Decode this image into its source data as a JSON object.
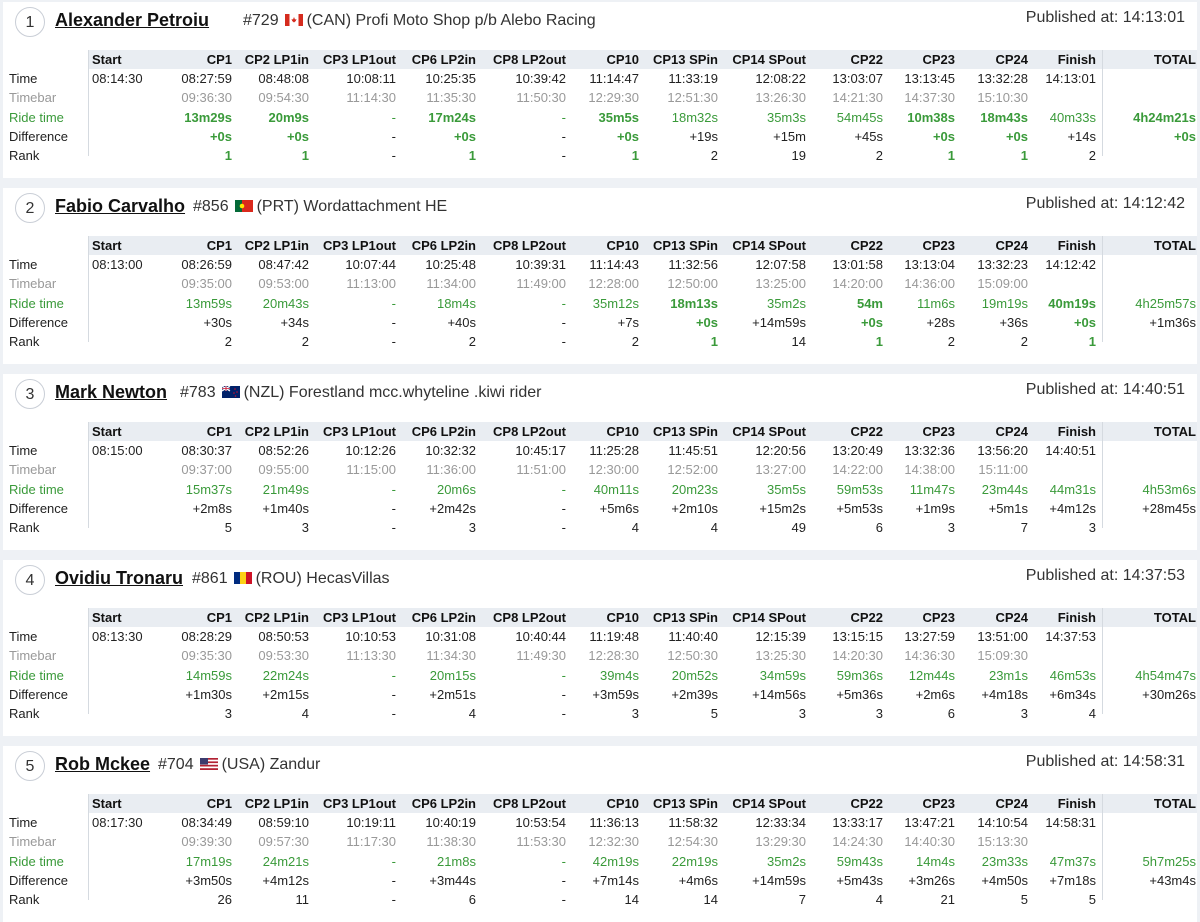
{
  "columns": [
    "Start",
    "CP1",
    "CP2 LP1in",
    "CP3 LP1out",
    "CP6 LP2in",
    "CP8 LP2out",
    "CP10",
    "CP13 SPin",
    "CP14 SPout",
    "CP22",
    "CP23",
    "CP24",
    "Finish",
    "TOTAL"
  ],
  "row_labels": [
    "Time",
    "Timebar",
    "Ride time",
    "Difference",
    "Rank"
  ],
  "riders": [
    {
      "position": "1",
      "name": "Alexander Petroiu",
      "number": "#729",
      "country": "(CAN)",
      "flag": "flag-canada",
      "team": "Profi Moto Shop p/b Alebo Racing",
      "published": "Published at: 14:13:01",
      "rows": {
        "time": [
          "08:14:30",
          "08:27:59",
          "08:48:08",
          "10:08:11",
          "10:25:35",
          "10:39:42",
          "11:14:47",
          "11:33:19",
          "12:08:22",
          "13:03:07",
          "13:13:45",
          "13:32:28",
          "14:13:01",
          ""
        ],
        "timebar": [
          "",
          "09:36:30",
          "09:54:30",
          "11:14:30",
          "11:35:30",
          "11:50:30",
          "12:29:30",
          "12:51:30",
          "13:26:30",
          "14:21:30",
          "14:37:30",
          "15:10:30",
          "",
          ""
        ],
        "ride": [
          "",
          "13m29s",
          "20m9s",
          "-",
          "17m24s",
          "-",
          "35m5s",
          "18m32s",
          "35m3s",
          "54m45s",
          "10m38s",
          "18m43s",
          "40m33s",
          "4h24m21s"
        ],
        "ride_best": [
          false,
          true,
          true,
          false,
          true,
          false,
          true,
          false,
          false,
          false,
          true,
          true,
          false,
          true
        ],
        "diff": [
          "",
          "+0s",
          "+0s",
          "-",
          "+0s",
          "-",
          "+0s",
          "+19s",
          "+15m",
          "+45s",
          "+0s",
          "+0s",
          "+14s",
          "+0s"
        ],
        "rank": [
          "",
          "1",
          "1",
          "-",
          "1",
          "-",
          "1",
          "2",
          "19",
          "2",
          "1",
          "1",
          "2",
          ""
        ]
      }
    },
    {
      "position": "2",
      "name": "Fabio Carvalho",
      "number": "#856",
      "country": "(PRT)",
      "flag": "flag-portugal",
      "team": "Wordattachment HE",
      "published": "Published at: 14:12:42",
      "rows": {
        "time": [
          "08:13:00",
          "08:26:59",
          "08:47:42",
          "10:07:44",
          "10:25:48",
          "10:39:31",
          "11:14:43",
          "11:32:56",
          "12:07:58",
          "13:01:58",
          "13:13:04",
          "13:32:23",
          "14:12:42",
          ""
        ],
        "timebar": [
          "",
          "09:35:00",
          "09:53:00",
          "11:13:00",
          "11:34:00",
          "11:49:00",
          "12:28:00",
          "12:50:00",
          "13:25:00",
          "14:20:00",
          "14:36:00",
          "15:09:00",
          "",
          ""
        ],
        "ride": [
          "",
          "13m59s",
          "20m43s",
          "-",
          "18m4s",
          "-",
          "35m12s",
          "18m13s",
          "35m2s",
          "54m",
          "11m6s",
          "19m19s",
          "40m19s",
          "4h25m57s"
        ],
        "ride_best": [
          false,
          false,
          false,
          false,
          false,
          false,
          false,
          true,
          false,
          true,
          false,
          false,
          true,
          false
        ],
        "diff": [
          "",
          "+30s",
          "+34s",
          "-",
          "+40s",
          "-",
          "+7s",
          "+0s",
          "+14m59s",
          "+0s",
          "+28s",
          "+36s",
          "+0s",
          "+1m36s"
        ],
        "rank": [
          "",
          "2",
          "2",
          "-",
          "2",
          "-",
          "2",
          "1",
          "14",
          "1",
          "2",
          "2",
          "1",
          ""
        ]
      }
    },
    {
      "position": "3",
      "name": "Mark Newton",
      "number": "#783",
      "country": "(NZL)",
      "flag": "flag-new-zealand",
      "team": "Forestland mcc.whyteline .kiwi rider",
      "published": "Published at: 14:40:51",
      "rows": {
        "time": [
          "08:15:00",
          "08:30:37",
          "08:52:26",
          "10:12:26",
          "10:32:32",
          "10:45:17",
          "11:25:28",
          "11:45:51",
          "12:20:56",
          "13:20:49",
          "13:32:36",
          "13:56:20",
          "14:40:51",
          ""
        ],
        "timebar": [
          "",
          "09:37:00",
          "09:55:00",
          "11:15:00",
          "11:36:00",
          "11:51:00",
          "12:30:00",
          "12:52:00",
          "13:27:00",
          "14:22:00",
          "14:38:00",
          "15:11:00",
          "",
          ""
        ],
        "ride": [
          "",
          "15m37s",
          "21m49s",
          "-",
          "20m6s",
          "-",
          "40m11s",
          "20m23s",
          "35m5s",
          "59m53s",
          "11m47s",
          "23m44s",
          "44m31s",
          "4h53m6s"
        ],
        "ride_best": [
          false,
          false,
          false,
          false,
          false,
          false,
          false,
          false,
          false,
          false,
          false,
          false,
          false,
          false
        ],
        "diff": [
          "",
          "+2m8s",
          "+1m40s",
          "-",
          "+2m42s",
          "-",
          "+5m6s",
          "+2m10s",
          "+15m2s",
          "+5m53s",
          "+1m9s",
          "+5m1s",
          "+4m12s",
          "+28m45s"
        ],
        "rank": [
          "",
          "5",
          "3",
          "-",
          "3",
          "-",
          "4",
          "4",
          "49",
          "6",
          "3",
          "7",
          "3",
          ""
        ]
      }
    },
    {
      "position": "4",
      "name": "Ovidiu Tronaru",
      "number": "#861",
      "country": "(ROU)",
      "flag": "flag-romania",
      "team": "HecasVillas",
      "published": "Published at: 14:37:53",
      "rows": {
        "time": [
          "08:13:30",
          "08:28:29",
          "08:50:53",
          "10:10:53",
          "10:31:08",
          "10:40:44",
          "11:19:48",
          "11:40:40",
          "12:15:39",
          "13:15:15",
          "13:27:59",
          "13:51:00",
          "14:37:53",
          ""
        ],
        "timebar": [
          "",
          "09:35:30",
          "09:53:30",
          "11:13:30",
          "11:34:30",
          "11:49:30",
          "12:28:30",
          "12:50:30",
          "13:25:30",
          "14:20:30",
          "14:36:30",
          "15:09:30",
          "",
          ""
        ],
        "ride": [
          "",
          "14m59s",
          "22m24s",
          "-",
          "20m15s",
          "-",
          "39m4s",
          "20m52s",
          "34m59s",
          "59m36s",
          "12m44s",
          "23m1s",
          "46m53s",
          "4h54m47s"
        ],
        "ride_best": [
          false,
          false,
          false,
          false,
          false,
          false,
          false,
          false,
          false,
          false,
          false,
          false,
          false,
          false
        ],
        "diff": [
          "",
          "+1m30s",
          "+2m15s",
          "-",
          "+2m51s",
          "-",
          "+3m59s",
          "+2m39s",
          "+14m56s",
          "+5m36s",
          "+2m6s",
          "+4m18s",
          "+6m34s",
          "+30m26s"
        ],
        "rank": [
          "",
          "3",
          "4",
          "-",
          "4",
          "-",
          "3",
          "5",
          "3",
          "3",
          "6",
          "3",
          "4",
          ""
        ]
      }
    },
    {
      "position": "5",
      "name": "Rob Mckee",
      "number": "#704",
      "country": "(USA)",
      "flag": "flag-usa",
      "team": "Zandur",
      "published": "Published at: 14:58:31",
      "rows": {
        "time": [
          "08:17:30",
          "08:34:49",
          "08:59:10",
          "10:19:11",
          "10:40:19",
          "10:53:54",
          "11:36:13",
          "11:58:32",
          "12:33:34",
          "13:33:17",
          "13:47:21",
          "14:10:54",
          "14:58:31",
          ""
        ],
        "timebar": [
          "",
          "09:39:30",
          "09:57:30",
          "11:17:30",
          "11:38:30",
          "11:53:30",
          "12:32:30",
          "12:54:30",
          "13:29:30",
          "14:24:30",
          "14:40:30",
          "15:13:30",
          "",
          ""
        ],
        "ride": [
          "",
          "17m19s",
          "24m21s",
          "-",
          "21m8s",
          "-",
          "42m19s",
          "22m19s",
          "35m2s",
          "59m43s",
          "14m4s",
          "23m33s",
          "47m37s",
          "5h7m25s"
        ],
        "ride_best": [
          false,
          false,
          false,
          false,
          false,
          false,
          false,
          false,
          false,
          false,
          false,
          false,
          false,
          false
        ],
        "diff": [
          "",
          "+3m50s",
          "+4m12s",
          "-",
          "+3m44s",
          "-",
          "+7m14s",
          "+4m6s",
          "+14m59s",
          "+5m43s",
          "+3m26s",
          "+4m50s",
          "+7m18s",
          "+43m4s"
        ],
        "rank": [
          "",
          "26",
          "11",
          "-",
          "6",
          "-",
          "14",
          "14",
          "7",
          "4",
          "21",
          "5",
          "5",
          ""
        ]
      }
    }
  ]
}
